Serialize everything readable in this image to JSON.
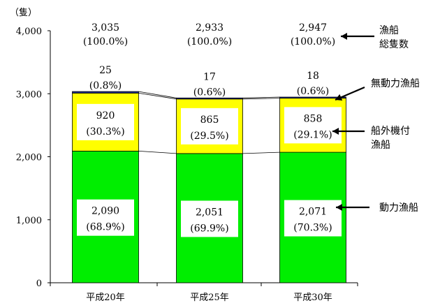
{
  "chart_data": {
    "type": "bar",
    "stacked": true,
    "unit_label": "（隻）",
    "categories": [
      "平成20年",
      "平成25年",
      "平成30年"
    ],
    "ylim": [
      0,
      4000
    ],
    "yticks": [
      "0",
      "1,000",
      "2,000",
      "3,000",
      "4,000"
    ],
    "ytick_values": [
      0,
      1000,
      2000,
      3000,
      4000
    ],
    "grid": false,
    "series": [
      {
        "name": "動力漁船",
        "color": "#00ee00",
        "values": [
          2090,
          2051,
          2071
        ],
        "value_labels": [
          "2,090",
          "2,051",
          "2,071"
        ],
        "pct_labels": [
          "(68.9%)",
          "(69.9%)",
          "(70.3%)"
        ]
      },
      {
        "name": "船外機付\n漁船",
        "color": "#ffff00",
        "values": [
          920,
          865,
          858
        ],
        "value_labels": [
          "920",
          "865",
          "858"
        ],
        "pct_labels": [
          "(30.3%)",
          "(29.5%)",
          "(29.1%)"
        ]
      },
      {
        "name": "無動力漁船",
        "color": "#1f2f8f",
        "values": [
          25,
          17,
          18
        ],
        "value_labels": [
          "25",
          "17",
          "18"
        ],
        "pct_labels": [
          "(0.8%)",
          "(0.6%)",
          "(0.6%)"
        ]
      }
    ],
    "totals": {
      "name": "漁船\n総隻数",
      "values": [
        3035,
        2933,
        2947
      ],
      "value_labels": [
        "3,035",
        "2,933",
        "2,947"
      ],
      "pct_labels": [
        "(100.0%)",
        "(100.0%)",
        "(100.0%)"
      ]
    }
  }
}
